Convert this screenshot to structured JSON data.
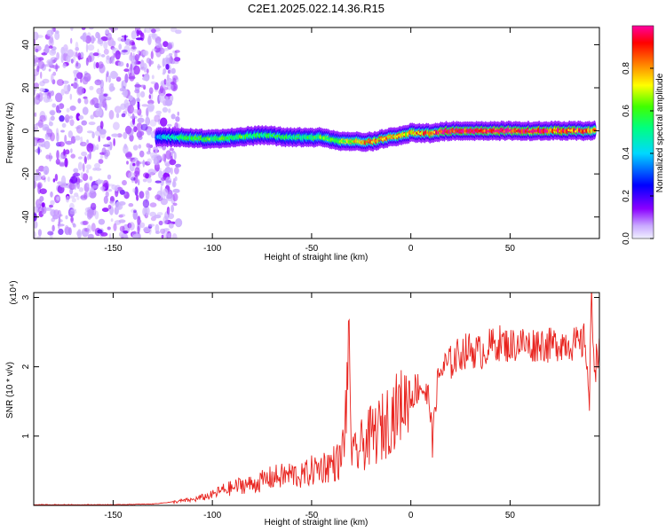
{
  "title": "C2E1.2025.022.14.36.R15",
  "colors": {
    "snr_line": "#e8231e",
    "axis": "#000000",
    "background": "#ffffff"
  },
  "chart_data": [
    {
      "type": "heatmap",
      "xlabel": "Height of straight line (km)",
      "ylabel": "Frequency (Hz)",
      "xlim": [
        -190,
        95
      ],
      "ylim": [
        -50,
        48
      ],
      "x_ticks": [
        -150,
        -100,
        -50,
        0,
        50
      ],
      "x_tick_labels": [
        "-150",
        "-100",
        "-50",
        "0",
        "50"
      ],
      "y_ticks": [
        -40,
        -20,
        0,
        20,
        40
      ],
      "y_tick_labels": [
        "-40",
        "-20",
        "0",
        "20",
        "40"
      ],
      "colorbar": {
        "label": "Normalized spectral amplitude",
        "range": [
          0.0,
          1.0
        ],
        "ticks": [
          0.0,
          0.2,
          0.4,
          0.6,
          0.8
        ],
        "tick_labels": [
          "0.0",
          "0.2",
          "0.4",
          "0.6",
          "0.8"
        ]
      },
      "noise_region_x": [
        -190,
        -125
      ],
      "signal_trace": [
        {
          "x": -128,
          "f": -3,
          "a": 0.35
        },
        {
          "x": -115,
          "f": -3,
          "a": 0.55
        },
        {
          "x": -100,
          "f": -4,
          "a": 0.6
        },
        {
          "x": -90,
          "f": -3,
          "a": 0.6
        },
        {
          "x": -75,
          "f": -2,
          "a": 0.55
        },
        {
          "x": -60,
          "f": -3,
          "a": 0.55
        },
        {
          "x": -45,
          "f": -3,
          "a": 0.6
        },
        {
          "x": -35,
          "f": -5,
          "a": 0.65
        },
        {
          "x": -20,
          "f": -5,
          "a": 0.8
        },
        {
          "x": -10,
          "f": -3,
          "a": 0.75
        },
        {
          "x": 0,
          "f": -1,
          "a": 0.8
        },
        {
          "x": 10,
          "f": -1,
          "a": 0.85
        },
        {
          "x": 20,
          "f": 0,
          "a": 0.95
        },
        {
          "x": 40,
          "f": 0,
          "a": 0.95
        },
        {
          "x": 60,
          "f": 0,
          "a": 0.95
        },
        {
          "x": 80,
          "f": 0,
          "a": 0.9
        },
        {
          "x": 93,
          "f": 0,
          "a": 0.85
        }
      ]
    },
    {
      "type": "line",
      "xlabel": "Height of straight line (km)",
      "ylabel": "SNR (10 * v/v)",
      "y_multiplier": "(x10⁴)",
      "xlim": [
        -190,
        95
      ],
      "ylim": [
        0,
        3.07
      ],
      "x_ticks": [
        -150,
        -100,
        -50,
        0,
        50
      ],
      "x_tick_labels": [
        "-150",
        "-100",
        "-50",
        "0",
        "50"
      ],
      "y_ticks": [
        1,
        2,
        3
      ],
      "y_tick_labels": [
        "1",
        "2",
        "3"
      ],
      "series": [
        {
          "name": "SNR",
          "x": [
            -190,
            -170,
            -150,
            -130,
            -120,
            -110,
            -100,
            -95,
            -90,
            -85,
            -80,
            -75,
            -70,
            -65,
            -60,
            -55,
            -50,
            -45,
            -40,
            -35,
            -33,
            -31,
            -30,
            -29,
            -27,
            -25,
            -20,
            -15,
            -10,
            -5,
            0,
            5,
            10,
            11,
            12,
            15,
            20,
            25,
            30,
            35,
            40,
            45,
            50,
            55,
            60,
            65,
            70,
            75,
            80,
            85,
            88,
            90,
            91,
            92,
            93,
            95
          ],
          "y": [
            0.01,
            0.01,
            0.01,
            0.02,
            0.05,
            0.08,
            0.15,
            0.22,
            0.25,
            0.3,
            0.3,
            0.35,
            0.4,
            0.42,
            0.45,
            0.42,
            0.5,
            0.55,
            0.6,
            0.65,
            1.2,
            2.4,
            0.9,
            0.7,
            0.75,
            0.85,
            1.0,
            1.1,
            1.3,
            1.45,
            1.6,
            1.75,
            1.45,
            0.7,
            1.5,
            1.95,
            2.05,
            2.2,
            2.25,
            2.2,
            2.3,
            2.35,
            2.3,
            2.35,
            2.3,
            2.35,
            2.3,
            2.35,
            2.35,
            2.3,
            2.4,
            1.45,
            3.05,
            2.3,
            2.0,
            2.4
          ]
        }
      ]
    }
  ]
}
